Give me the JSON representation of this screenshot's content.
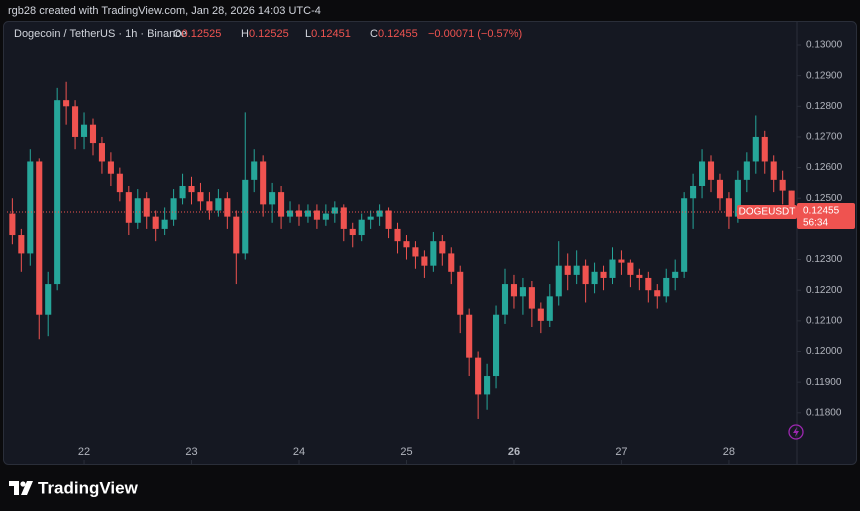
{
  "caption": "rgb28 created with TradingView.com, Jan 28, 2026 14:03 UTC-4",
  "brand": "TradingView",
  "chart_data": {
    "type": "candlestick",
    "title": "Dogecoin / TetherUS · 1h · Binance",
    "header": {
      "open_label": "O",
      "open": "0.12525",
      "high_label": "H",
      "high": "0.12525",
      "low_label": "L",
      "low": "0.12451",
      "close_label": "C",
      "close": "0.12455",
      "change": "−0.00071 (−0.57%)"
    },
    "open": [
      0.1245,
      0.1238,
      0.1232,
      0.1262,
      0.1212,
      0.1222,
      0.1282,
      0.128,
      0.127,
      0.1274,
      0.1268,
      0.1262,
      0.1258,
      0.1252,
      0.1242,
      0.125,
      0.1244,
      0.124,
      0.1243,
      0.125,
      0.1254,
      0.1252,
      0.1249,
      0.1246,
      0.125,
      0.1244,
      0.1232,
      0.1256,
      0.1262,
      0.1248,
      0.1252,
      0.1244,
      0.1246,
      0.1244,
      0.1246,
      0.1243,
      0.1245,
      0.1247,
      0.124,
      0.1238,
      0.1243,
      0.1244,
      0.1246,
      0.124,
      0.1236,
      0.1234,
      0.1231,
      0.1228,
      0.1236,
      0.1232,
      0.1226,
      0.1212,
      0.1198,
      0.1186,
      0.1192,
      0.1212,
      0.1222,
      0.1218,
      0.1221,
      0.1214,
      0.121,
      0.1218,
      0.1228,
      0.1225,
      0.1228,
      0.1222,
      0.1226,
      0.1224,
      0.123,
      0.1229,
      0.1225,
      0.1224,
      0.122,
      0.1218,
      0.1224,
      0.1226,
      0.125,
      0.1254,
      0.1262,
      0.1256,
      0.125,
      0.1244,
      0.1256,
      0.1262,
      0.127,
      0.1262,
      0.1256,
      0.12525
    ],
    "high": [
      0.125,
      0.124,
      0.1266,
      0.1263,
      0.1226,
      0.1286,
      0.1288,
      0.1282,
      0.1278,
      0.1276,
      0.127,
      0.1265,
      0.126,
      0.1254,
      0.1253,
      0.1252,
      0.1246,
      0.1247,
      0.1253,
      0.1258,
      0.1257,
      0.1255,
      0.1252,
      0.1253,
      0.1252,
      0.1246,
      0.1278,
      0.1266,
      0.1264,
      0.1255,
      0.1254,
      0.1249,
      0.1248,
      0.1248,
      0.1248,
      0.1248,
      0.1249,
      0.1248,
      0.1242,
      0.1245,
      0.1246,
      0.1248,
      0.1247,
      0.1242,
      0.1238,
      0.1236,
      0.1233,
      0.1239,
      0.1238,
      0.1234,
      0.1228,
      0.1214,
      0.12,
      0.1196,
      0.1215,
      0.1227,
      0.1225,
      0.1224,
      0.1223,
      0.1216,
      0.1222,
      0.1236,
      0.1232,
      0.1233,
      0.123,
      0.1229,
      0.1228,
      0.1234,
      0.1233,
      0.123,
      0.1227,
      0.1226,
      0.1222,
      0.1227,
      0.123,
      0.1252,
      0.1258,
      0.1266,
      0.1264,
      0.1258,
      0.1252,
      0.1259,
      0.1265,
      0.1277,
      0.1272,
      0.1264,
      0.1259,
      0.12525
    ],
    "low": [
      0.1235,
      0.1226,
      0.1228,
      0.1204,
      0.1205,
      0.122,
      0.1274,
      0.1266,
      0.1266,
      0.1264,
      0.1258,
      0.1254,
      0.1249,
      0.1238,
      0.124,
      0.124,
      0.1236,
      0.1238,
      0.1241,
      0.1248,
      0.1248,
      0.1246,
      0.1243,
      0.1244,
      0.124,
      0.1222,
      0.123,
      0.1252,
      0.1244,
      0.1242,
      0.124,
      0.1242,
      0.1241,
      0.1242,
      0.124,
      0.1241,
      0.1242,
      0.1236,
      0.1234,
      0.1236,
      0.124,
      0.1241,
      0.1237,
      0.1232,
      0.123,
      0.1227,
      0.1224,
      0.1226,
      0.1228,
      0.1222,
      0.1206,
      0.1192,
      0.1178,
      0.1181,
      0.1188,
      0.1209,
      0.1214,
      0.1212,
      0.1208,
      0.1206,
      0.1208,
      0.1215,
      0.122,
      0.1222,
      0.1216,
      0.1219,
      0.122,
      0.1222,
      0.1225,
      0.1221,
      0.122,
      0.1216,
      0.1214,
      0.1216,
      0.122,
      0.1224,
      0.124,
      0.125,
      0.1252,
      0.1246,
      0.124,
      0.1242,
      0.1252,
      0.1258,
      0.1258,
      0.1252,
      0.1248,
      0.12451
    ],
    "close": [
      0.1238,
      0.1232,
      0.1262,
      0.1212,
      0.1222,
      0.1282,
      0.128,
      0.127,
      0.1274,
      0.1268,
      0.1262,
      0.1258,
      0.1252,
      0.1242,
      0.125,
      0.1244,
      0.124,
      0.1243,
      0.125,
      0.1254,
      0.1252,
      0.1249,
      0.1246,
      0.125,
      0.1244,
      0.1232,
      0.1256,
      0.1262,
      0.1248,
      0.1252,
      0.1244,
      0.1246,
      0.1244,
      0.1246,
      0.1243,
      0.1245,
      0.1247,
      0.124,
      0.1238,
      0.1243,
      0.1244,
      0.1246,
      0.124,
      0.1236,
      0.1234,
      0.1231,
      0.1228,
      0.1236,
      0.1232,
      0.1226,
      0.1212,
      0.1198,
      0.1186,
      0.1192,
      0.1212,
      0.1222,
      0.1218,
      0.1221,
      0.1214,
      0.121,
      0.1218,
      0.1228,
      0.1225,
      0.1228,
      0.1222,
      0.1226,
      0.1224,
      0.123,
      0.1229,
      0.1225,
      0.1224,
      0.122,
      0.1218,
      0.1224,
      0.1226,
      0.125,
      0.1254,
      0.1262,
      0.1256,
      0.125,
      0.1244,
      0.1256,
      0.1262,
      0.127,
      0.1262,
      0.1256,
      0.12525,
      0.12455
    ],
    "colors": {
      "up": "#26a69a",
      "down": "#ef5350"
    },
    "symbol": "DOGEUSDT",
    "countdown": "56:34",
    "xlim": [
      -0.6,
      87.6
    ],
    "xticks": [
      {
        "value": 8,
        "label": "22"
      },
      {
        "value": 20,
        "label": "23"
      },
      {
        "value": 32,
        "label": "24"
      },
      {
        "value": 44,
        "label": "25"
      },
      {
        "value": 56,
        "label": "26",
        "bold": true
      },
      {
        "value": 68,
        "label": "27"
      },
      {
        "value": 80,
        "label": "28"
      }
    ],
    "ylim": [
      0.11633,
      0.13075
    ],
    "yticks": [
      {
        "value": 0.13,
        "label": "0.13000"
      },
      {
        "value": 0.129,
        "label": "0.12900"
      },
      {
        "value": 0.128,
        "label": "0.12800"
      },
      {
        "value": 0.127,
        "label": "0.12700"
      },
      {
        "value": 0.126,
        "label": "0.12600"
      },
      {
        "value": 0.125,
        "label": "0.12500"
      },
      {
        "value": 0.123,
        "label": "0.12300"
      },
      {
        "value": 0.122,
        "label": "0.12200"
      },
      {
        "value": 0.121,
        "label": "0.12100"
      },
      {
        "value": 0.12,
        "label": "0.12000"
      },
      {
        "value": 0.119,
        "label": "0.11900"
      },
      {
        "value": 0.118,
        "label": "0.11800"
      }
    ]
  }
}
